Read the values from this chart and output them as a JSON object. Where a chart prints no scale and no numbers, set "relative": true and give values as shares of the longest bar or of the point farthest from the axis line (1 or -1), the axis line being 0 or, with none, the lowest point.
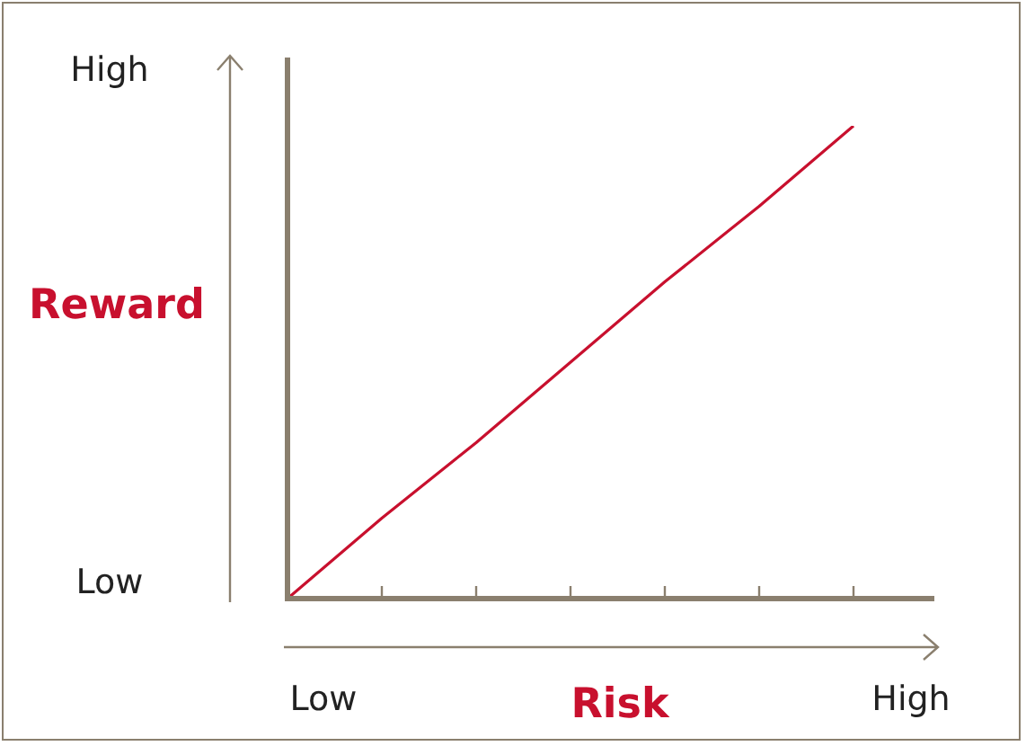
{
  "chart_data": {
    "type": "line",
    "relative": true,
    "xlabel": "Risk",
    "ylabel": "Reward",
    "categories": [
      null,
      null,
      null,
      null,
      null,
      null,
      null
    ],
    "series": [
      {
        "color": "#c8102e",
        "values": [
          0,
          0.17,
          0.33,
          0.5,
          0.67,
          0.83,
          1
        ]
      }
    ],
    "annotations": [
      "High",
      "Low",
      "Low",
      "High"
    ],
    "grid": false,
    "legend": false,
    "marker": "none",
    "line_style": "solid"
  }
}
